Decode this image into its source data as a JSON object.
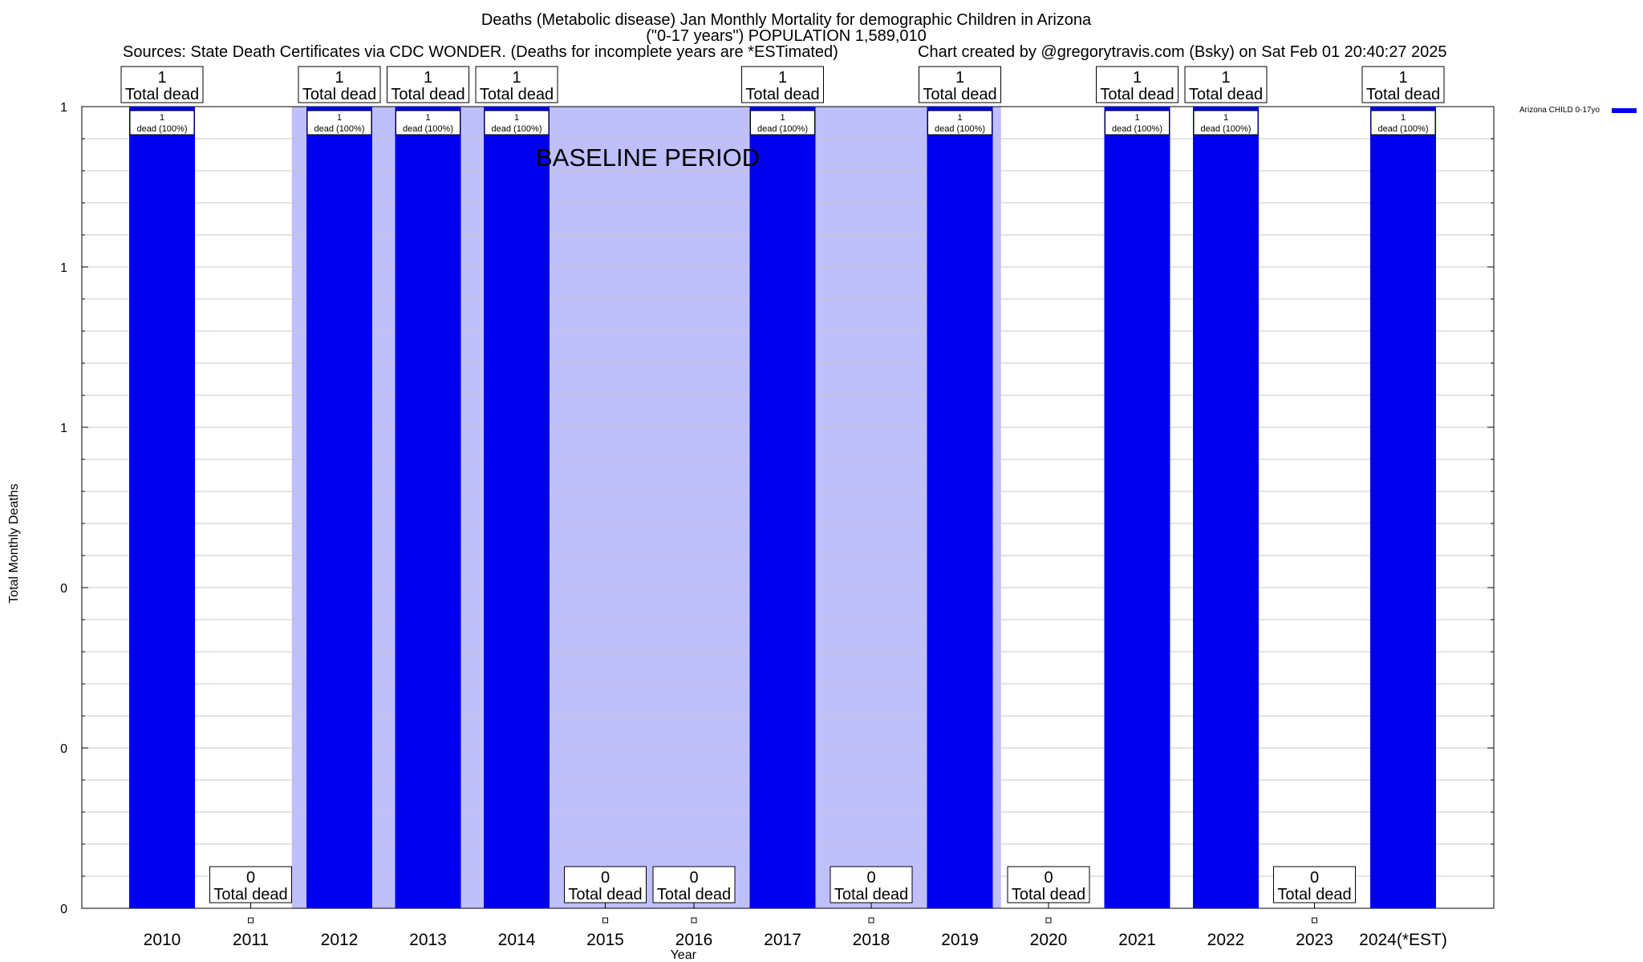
{
  "header": {
    "title_line1": "Deaths (Metabolic disease) Jan Monthly Mortality for demographic Children in Arizona",
    "title_line2": "(\"0-17 years\") POPULATION 1,589,010",
    "sources": "Sources: State Death Certificates via CDC WONDER. (Deaths for incomplete years are *ESTimated)",
    "credit": "Chart created by @gregorytravis.com (Bsky) on Sat Feb 01 20:40:27 2025"
  },
  "legend": {
    "label": "Arizona CHILD 0-17yo",
    "color": "#0000ee"
  },
  "chart_data": {
    "type": "bar",
    "xlabel": "Year",
    "ylabel": "Total Monthly Deaths",
    "ylim": [
      0,
      1
    ],
    "y_tick_labels": [
      "0",
      "0",
      "0",
      "1",
      "1",
      "1"
    ],
    "categories": [
      "2010",
      "2011",
      "2012",
      "2013",
      "2014",
      "2015",
      "2016",
      "2017",
      "2018",
      "2019",
      "2020",
      "2021",
      "2022",
      "2023",
      "2024(*EST)"
    ],
    "series": [
      {
        "name": "Arizona CHILD 0-17yo",
        "color": "#0000ee",
        "values": [
          1,
          0,
          1,
          1,
          1,
          0,
          0,
          1,
          0,
          1,
          0,
          1,
          1,
          0,
          1
        ]
      }
    ],
    "total_label_suffix": "Total dead",
    "bar_label_suffix": "dead (100%)",
    "baseline": {
      "label": "BASELINE PERIOD",
      "from": "2012",
      "to": "2019",
      "color": "#bfbffc"
    },
    "grid": true
  }
}
